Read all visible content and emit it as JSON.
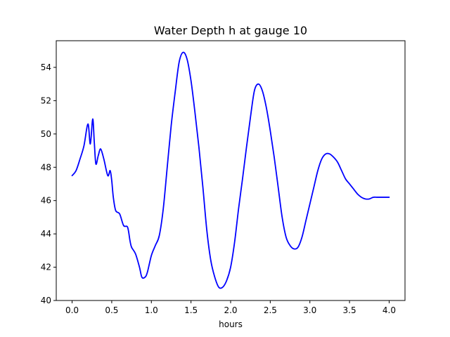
{
  "chart_data": {
    "type": "line",
    "title": "Water Depth h at gauge 10",
    "xlabel": "hours",
    "ylabel": "",
    "xlim": [
      -0.2,
      4.2
    ],
    "ylim": [
      40,
      55.6
    ],
    "xticks": [
      "0.0",
      "0.5",
      "1.0",
      "1.5",
      "2.0",
      "2.5",
      "3.0",
      "3.5",
      "4.0"
    ],
    "yticks": [
      "40",
      "42",
      "44",
      "46",
      "48",
      "50",
      "52",
      "54"
    ],
    "grid": false,
    "series": [
      {
        "color": "#0000ff",
        "x": [
          0.0,
          0.05,
          0.1,
          0.15,
          0.2,
          0.23,
          0.26,
          0.28,
          0.3,
          0.33,
          0.36,
          0.4,
          0.45,
          0.48,
          0.5,
          0.52,
          0.55,
          0.6,
          0.65,
          0.7,
          0.73,
          0.75,
          0.8,
          0.85,
          0.88,
          0.92,
          0.95,
          1.0,
          1.05,
          1.1,
          1.15,
          1.2,
          1.25,
          1.3,
          1.35,
          1.4,
          1.45,
          1.5,
          1.55,
          1.6,
          1.65,
          1.7,
          1.75,
          1.8,
          1.85,
          1.9,
          1.95,
          2.0,
          2.05,
          2.1,
          2.15,
          2.2,
          2.25,
          2.3,
          2.35,
          2.4,
          2.45,
          2.5,
          2.55,
          2.6,
          2.65,
          2.7,
          2.75,
          2.8,
          2.85,
          2.9,
          2.95,
          3.0,
          3.05,
          3.1,
          3.15,
          3.2,
          3.25,
          3.3,
          3.35,
          3.4,
          3.45,
          3.5,
          3.55,
          3.6,
          3.65,
          3.7,
          3.75,
          3.8,
          3.85,
          3.9,
          3.95,
          4.0
        ],
        "y": [
          47.5,
          47.8,
          48.5,
          49.3,
          50.6,
          49.4,
          50.9,
          49.5,
          48.2,
          48.7,
          49.1,
          48.5,
          47.5,
          47.8,
          47.2,
          46.2,
          45.4,
          45.2,
          44.5,
          44.4,
          43.6,
          43.2,
          42.8,
          42.0,
          41.4,
          41.4,
          41.7,
          42.7,
          43.3,
          43.9,
          45.5,
          48.0,
          50.5,
          52.5,
          54.3,
          54.9,
          54.5,
          53.2,
          51.3,
          49.2,
          46.8,
          44.2,
          42.4,
          41.4,
          40.8,
          40.8,
          41.2,
          42.0,
          43.5,
          45.5,
          47.3,
          49.2,
          51.0,
          52.6,
          53.0,
          52.6,
          51.6,
          50.2,
          48.6,
          46.8,
          45.0,
          43.8,
          43.3,
          43.1,
          43.2,
          43.8,
          44.8,
          45.8,
          46.8,
          47.8,
          48.5,
          48.8,
          48.8,
          48.6,
          48.3,
          47.8,
          47.3,
          47.0,
          46.7,
          46.4,
          46.2,
          46.1,
          46.1,
          46.2,
          46.2,
          46.2,
          46.2,
          46.2
        ]
      }
    ]
  }
}
